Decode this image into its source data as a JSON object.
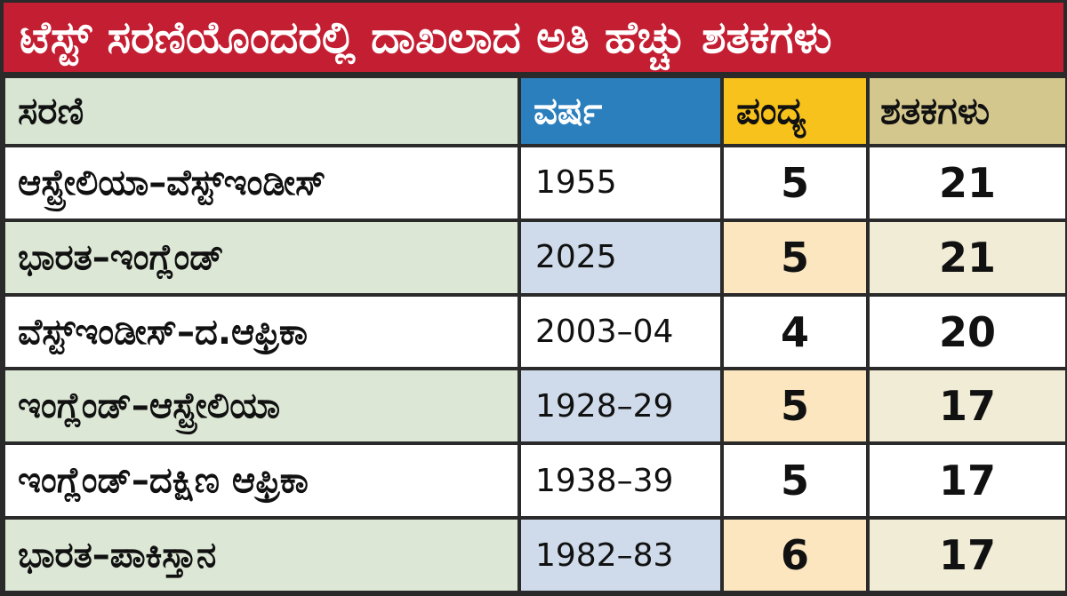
{
  "chart_data": {
    "type": "table",
    "title": "ಟೆಸ್ಟ್ ಸರಣಿಯೊಂದರಲ್ಲಿ ದಾಖಲಾದ ಅತಿ ಹೆಚ್ಚು ಶತಕಗಳು",
    "columns": [
      "ಸರಣಿ",
      "ವರ್ಷ",
      "ಪಂದ್ಯ",
      "ಶತಕಗಳು"
    ],
    "rows": [
      {
        "series": "ಆಸ್ಟ್ರೇಲಿಯಾ–ವೆಸ್ಟ್ಇಂಡೀಸ್",
        "year": "1955",
        "matches": 5,
        "centuries": 21
      },
      {
        "series": "ಭಾರತ–ಇಂಗ್ಲೆಂಡ್",
        "year": "2025",
        "matches": 5,
        "centuries": 21
      },
      {
        "series": "ವೆಸ್ಟ್ಇಂಡೀಸ್–ದ.ಆಫ್ರಿಕಾ",
        "year": "2003–04",
        "matches": 4,
        "centuries": 20
      },
      {
        "series": "ಇಂಗ್ಲೆಂಡ್–ಆಸ್ಟ್ರೇಲಿಯಾ",
        "year": "1928–29",
        "matches": 5,
        "centuries": 17
      },
      {
        "series": "ಇಂಗ್ಲೆಂಡ್–ದಕ್ಷಿಣ ಆಫ್ರಿಕಾ",
        "year": "1938–39",
        "matches": 5,
        "centuries": 17
      },
      {
        "series": "ಭಾರತ–ಪಾಕಿಸ್ತಾನ",
        "year": "1982–83",
        "matches": 6,
        "centuries": 17
      }
    ]
  },
  "colors": {
    "title_bg": "#c41e32",
    "header_series": "#d8e5d2",
    "header_year": "#2b7fbd",
    "header_matches": "#f6c21b",
    "header_centuries": "#d4c78e"
  }
}
